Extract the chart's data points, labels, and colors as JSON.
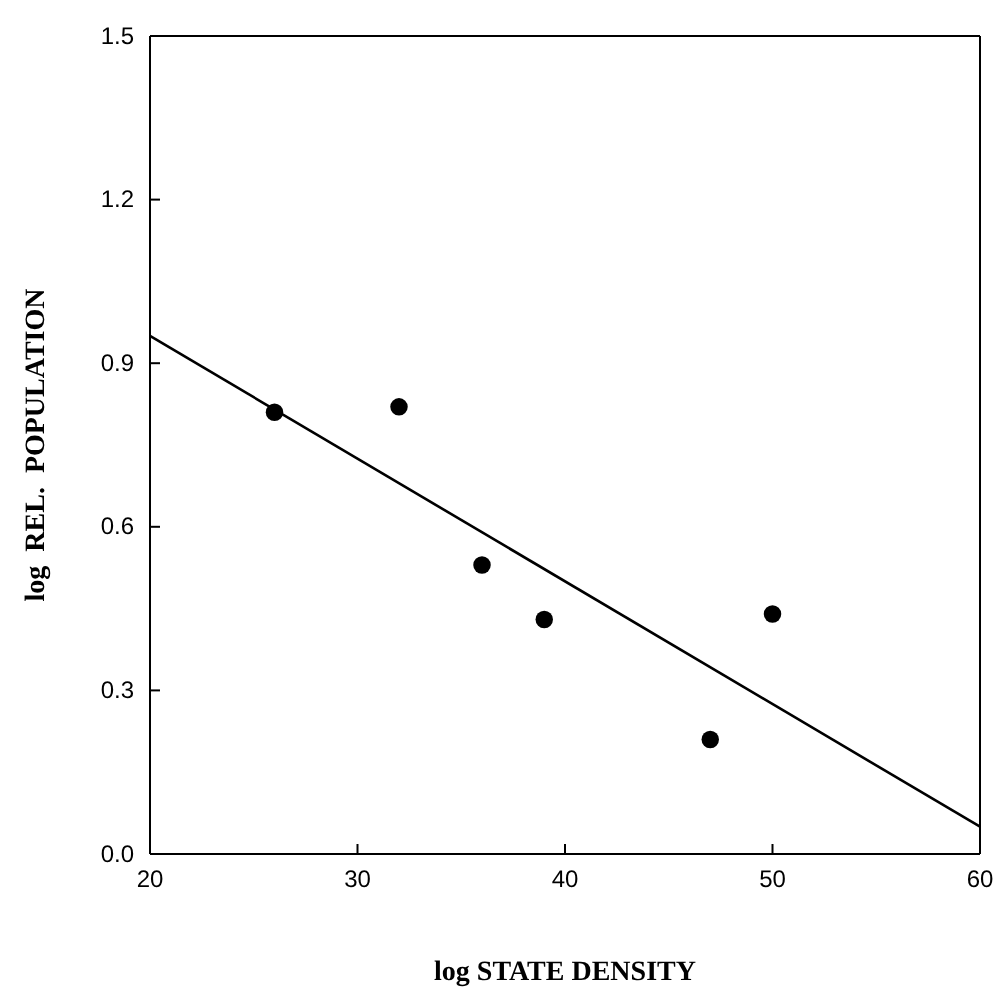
{
  "chart_data": {
    "type": "scatter",
    "xlabel": "log STATE DENSITY",
    "ylabel": "log  REL.  POPULATION",
    "xlim": [
      20,
      60
    ],
    "xticks": [
      20,
      30,
      40,
      50,
      60
    ],
    "ylim": [
      0,
      1.5
    ],
    "yticks": [
      {
        "value": 0,
        "label": "0.0"
      },
      {
        "value": 0.3,
        "label": "0.3"
      },
      {
        "value": 0.6,
        "label": "0.6"
      },
      {
        "value": 0.9,
        "label": "0.9"
      },
      {
        "value": 1.2,
        "label": "1.2"
      },
      {
        "value": 1.5,
        "label": "1.5"
      }
    ],
    "grid": false,
    "marker": "circle",
    "series": [
      {
        "color": "#000000",
        "x": [
          26,
          32,
          36,
          39,
          47,
          50
        ],
        "values": [
          0.81,
          0.82,
          0.53,
          0.43,
          0.21,
          0.44
        ]
      },
      {
        "type": "line",
        "color": "#000000",
        "line_style": "solid",
        "marker": "none",
        "x": [
          20,
          60
        ],
        "values": [
          0.95,
          0.05
        ]
      }
    ]
  }
}
